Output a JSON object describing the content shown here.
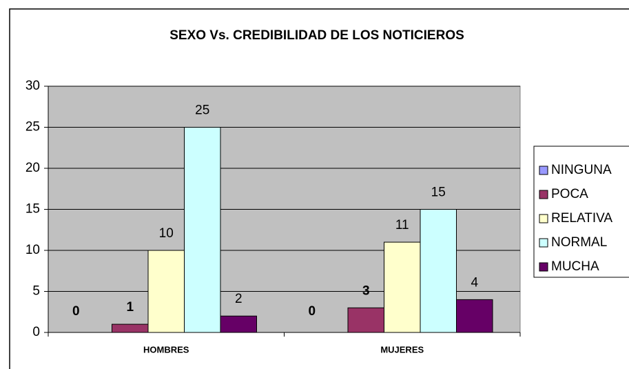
{
  "chart_data": {
    "type": "bar",
    "title": "SEXO Vs. CREDIBILIDAD DE LOS NOTICIEROS",
    "categories": [
      "HOMBRES",
      "MUJERES"
    ],
    "series": [
      {
        "name": "NINGUNA",
        "color": "#9999ff",
        "values": [
          0,
          0
        ]
      },
      {
        "name": "POCA",
        "color": "#993366",
        "values": [
          1,
          3
        ]
      },
      {
        "name": "RELATIVA",
        "color": "#ffffcc",
        "values": [
          10,
          11
        ]
      },
      {
        "name": "NORMAL",
        "color": "#ccffff",
        "values": [
          25,
          15
        ]
      },
      {
        "name": "MUCHA",
        "color": "#660066",
        "values": [
          2,
          4
        ]
      }
    ],
    "ylim": [
      0,
      30
    ],
    "yticks": [
      0,
      5,
      10,
      15,
      20,
      25,
      30
    ],
    "grid": true,
    "legend": "right"
  }
}
